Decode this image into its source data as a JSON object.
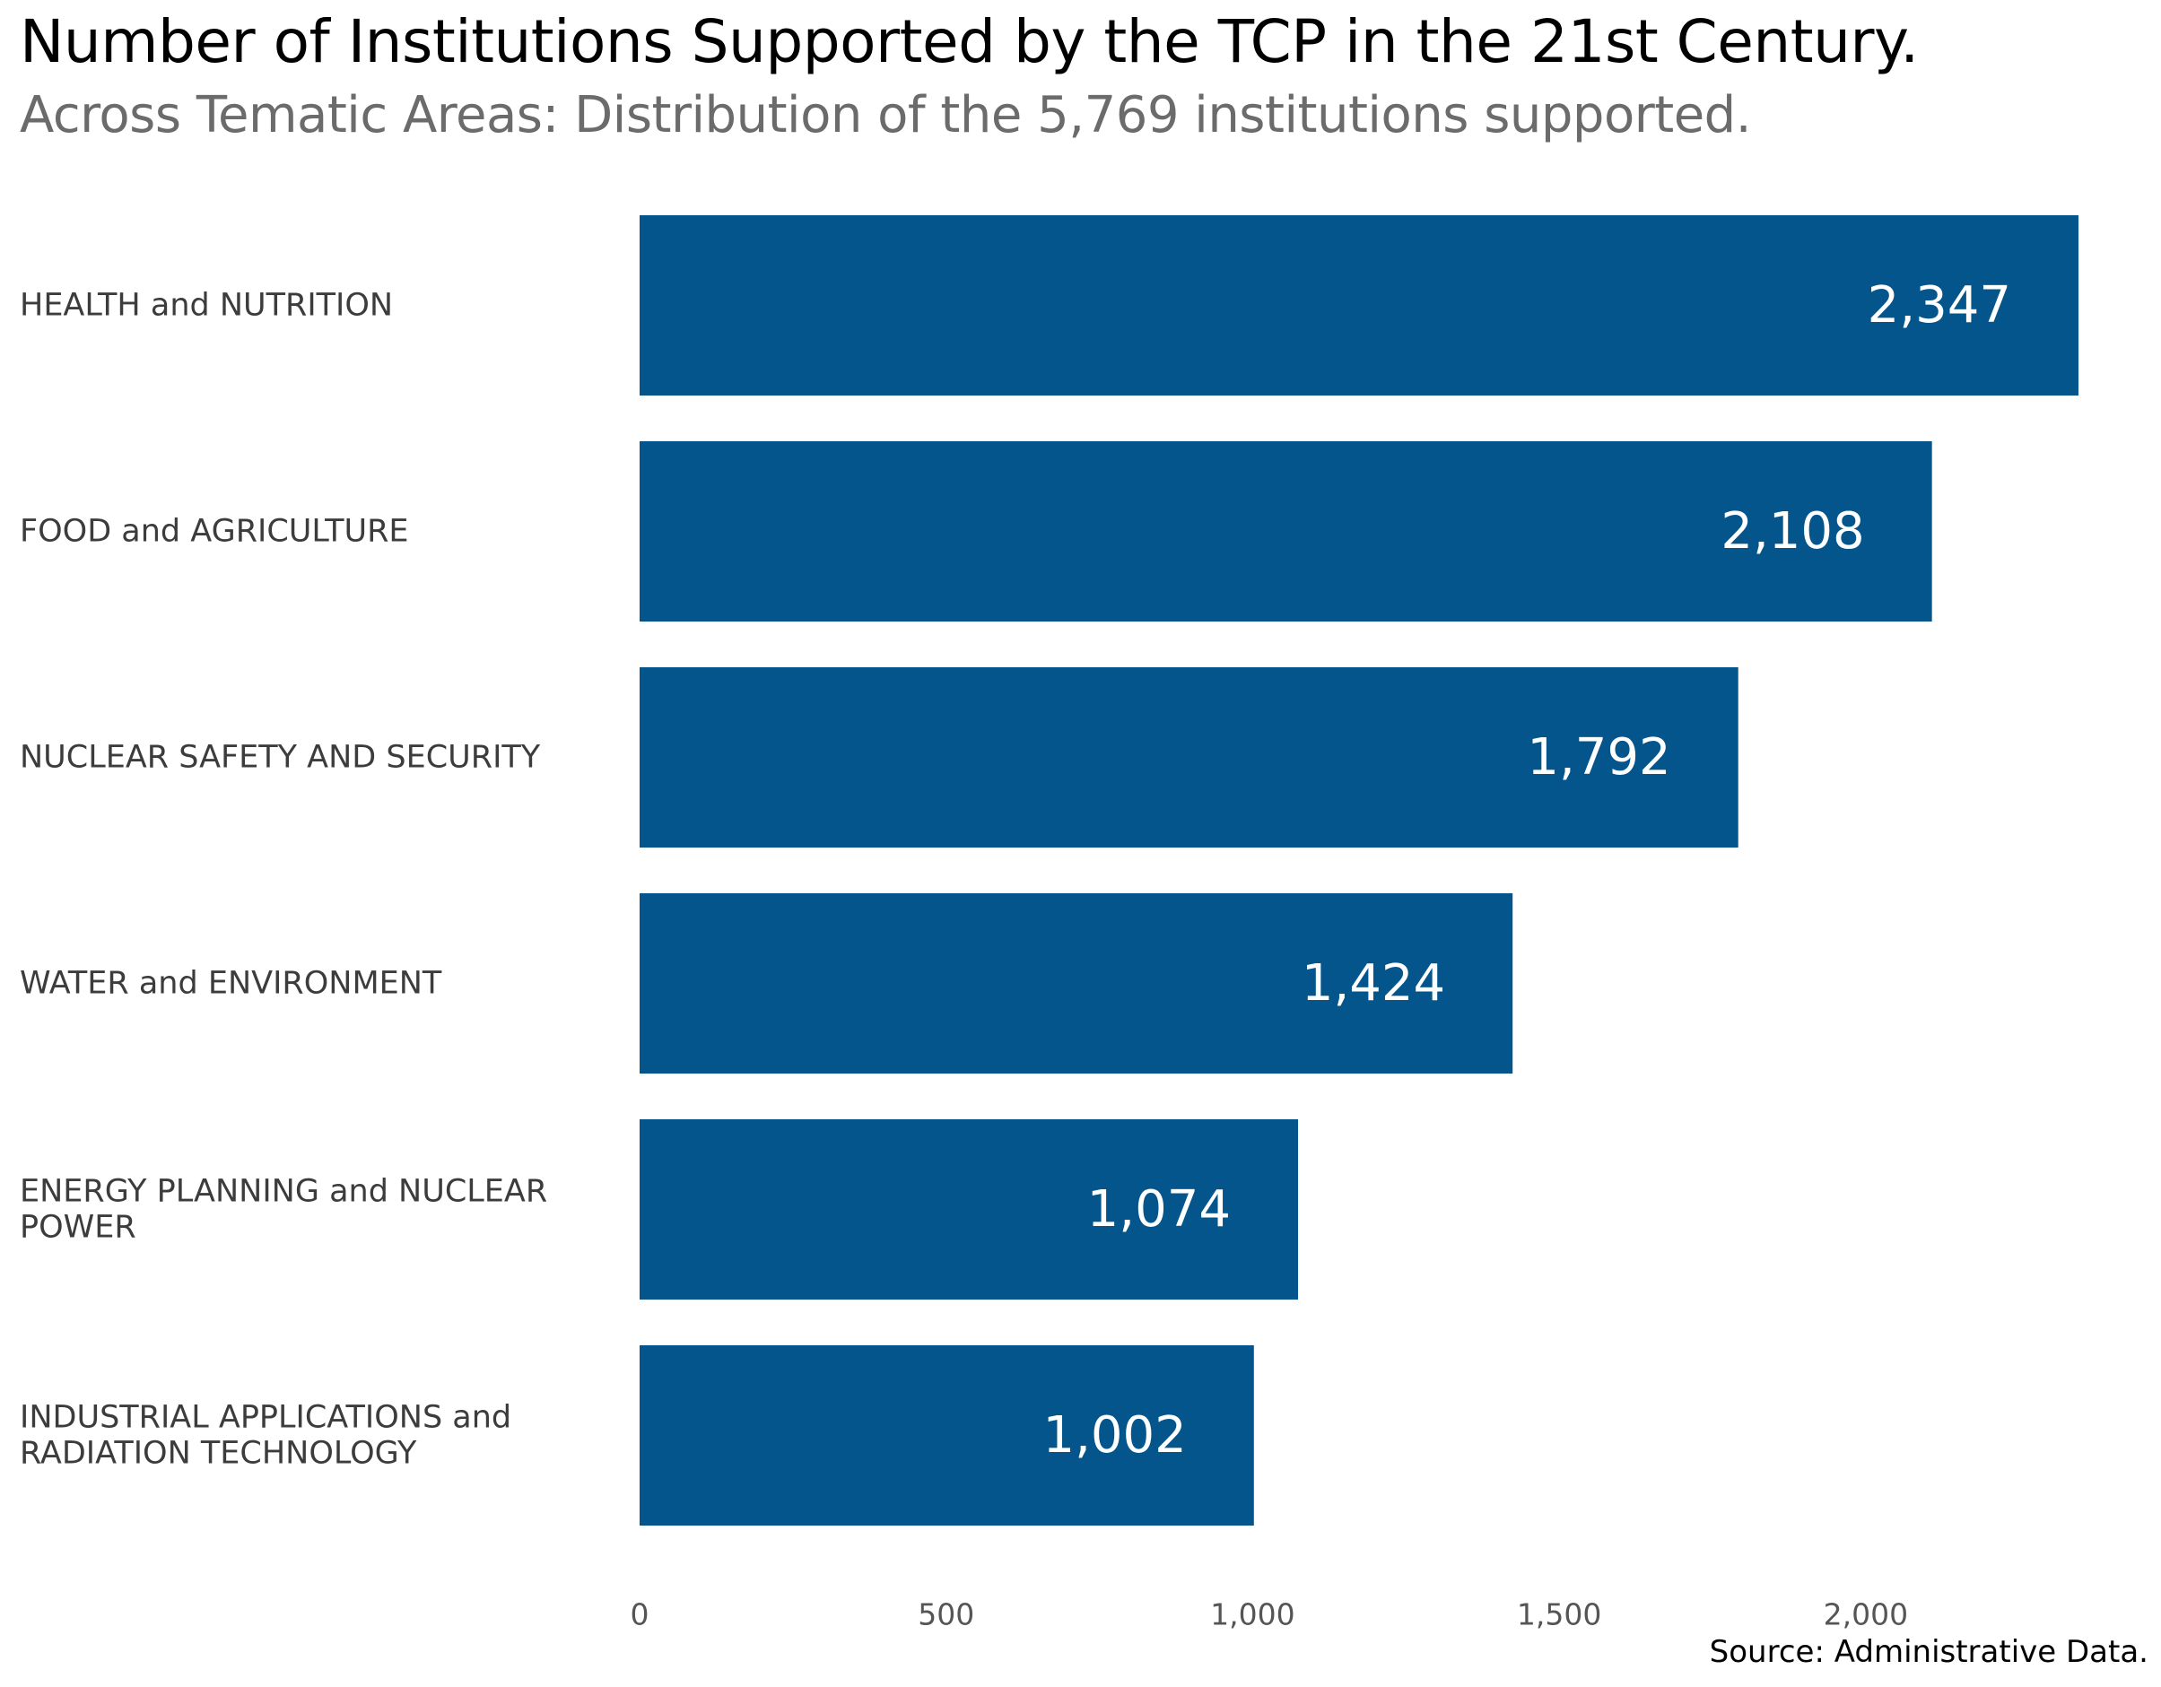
{
  "chart_data": {
    "type": "bar",
    "orientation": "horizontal",
    "title": "Number of Institutions Supported by the TCP in the 21st Century.",
    "subtitle": "Across Tematic Areas: Distribution of the 5,769 institutions supported.",
    "categories": [
      [
        "HEALTH and NUTRITION"
      ],
      [
        "FOOD and AGRICULTURE"
      ],
      [
        "NUCLEAR SAFETY AND SECURITY"
      ],
      [
        "WATER and ENVIRONMENT"
      ],
      [
        "ENERGY PLANNING and NUCLEAR",
        "POWER"
      ],
      [
        "INDUSTRIAL APPLICATIONS and",
        "RADIATION TECHNOLOGY"
      ]
    ],
    "values": [
      2347,
      2108,
      1792,
      1424,
      1074,
      1002
    ],
    "value_labels": [
      "2,347",
      "2,108",
      "1,792",
      "1,424",
      "1,074",
      "1,002"
    ],
    "xlim": [
      0,
      2347
    ],
    "xticks": [
      0,
      500,
      1000,
      1500,
      2000
    ],
    "xtick_labels": [
      "0",
      "500",
      "1,000",
      "1,500",
      "2,000"
    ],
    "xlabel": "",
    "ylabel": "",
    "grid": false,
    "bar_color": "#03558b",
    "caption": "Source: Administrative Data."
  }
}
